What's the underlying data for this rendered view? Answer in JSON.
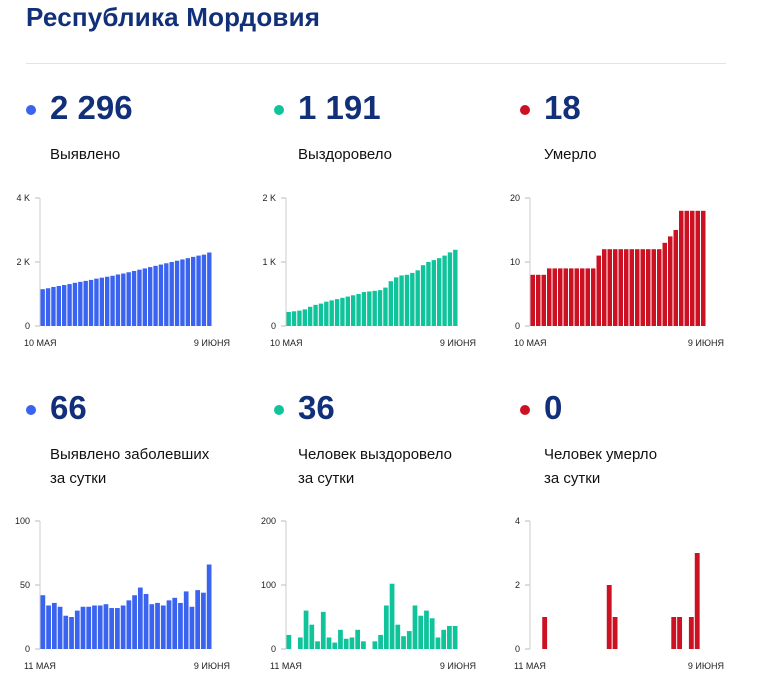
{
  "title": "Республика Мордовия",
  "colors": {
    "blue": "#3a63f0",
    "teal": "#0fc39a",
    "red": "#cc1123",
    "title": "#12307a"
  },
  "stats": [
    {
      "value": "2 296",
      "label1": "Выявлено",
      "label2": ""
    },
    {
      "value": "1 191",
      "label1": "Выздоровело",
      "label2": ""
    },
    {
      "value": "18",
      "label1": "Умерло",
      "label2": ""
    },
    {
      "value": "66",
      "label1": "Выявлено заболевших",
      "label2": "за сутки"
    },
    {
      "value": "36",
      "label1": "Человек выздоровело",
      "label2": "за сутки"
    },
    {
      "value": "0",
      "label1": "Человек умерло",
      "label2": "за сутки"
    }
  ],
  "chart_data": [
    {
      "type": "bar",
      "color": "blue",
      "ylim": [
        0,
        4000
      ],
      "yticks": [
        {
          "v": 0,
          "t": "0"
        },
        {
          "v": 2000,
          "t": "2 K"
        },
        {
          "v": 4000,
          "t": "4 K"
        }
      ],
      "x_start": "10 МАЯ",
      "x_end": "9 ИЮНЯ",
      "values": [
        1150,
        1180,
        1220,
        1250,
        1280,
        1310,
        1350,
        1380,
        1410,
        1440,
        1480,
        1510,
        1540,
        1570,
        1610,
        1640,
        1680,
        1720,
        1760,
        1800,
        1840,
        1880,
        1920,
        1960,
        2000,
        2040,
        2080,
        2120,
        2160,
        2200,
        2230,
        2296
      ]
    },
    {
      "type": "bar",
      "color": "teal",
      "ylim": [
        0,
        2000
      ],
      "yticks": [
        {
          "v": 0,
          "t": "0"
        },
        {
          "v": 1000,
          "t": "1 K"
        },
        {
          "v": 2000,
          "t": "2 K"
        }
      ],
      "x_start": "10 МАЯ",
      "x_end": "9 ИЮНЯ",
      "values": [
        220,
        230,
        240,
        260,
        300,
        330,
        350,
        380,
        400,
        420,
        440,
        460,
        480,
        500,
        530,
        540,
        550,
        560,
        600,
        700,
        760,
        790,
        800,
        830,
        870,
        950,
        1000,
        1030,
        1060,
        1100,
        1150,
        1191
      ]
    },
    {
      "type": "bar",
      "color": "red",
      "ylim": [
        0,
        20
      ],
      "yticks": [
        {
          "v": 0,
          "t": "0"
        },
        {
          "v": 10,
          "t": "10"
        },
        {
          "v": 20,
          "t": "20"
        }
      ],
      "x_start": "10 МАЯ",
      "x_end": "9 ИЮНЯ",
      "values": [
        8,
        8,
        8,
        9,
        9,
        9,
        9,
        9,
        9,
        9,
        9,
        9,
        11,
        12,
        12,
        12,
        12,
        12,
        12,
        12,
        12,
        12,
        12,
        12,
        13,
        14,
        15,
        18,
        18,
        18,
        18,
        18
      ]
    },
    {
      "type": "bar",
      "color": "blue",
      "ylim": [
        0,
        100
      ],
      "yticks": [
        {
          "v": 0,
          "t": "0"
        },
        {
          "v": 50,
          "t": "50"
        },
        {
          "v": 100,
          "t": "100"
        }
      ],
      "x_start": "11 МАЯ",
      "x_end": "9 ИЮНЯ",
      "values": [
        42,
        34,
        36,
        33,
        26,
        25,
        30,
        33,
        33,
        34,
        34,
        35,
        32,
        32,
        34,
        38,
        42,
        48,
        43,
        35,
        36,
        34,
        38,
        40,
        36,
        45,
        33,
        46,
        44,
        66
      ]
    },
    {
      "type": "bar",
      "color": "teal",
      "ylim": [
        0,
        200
      ],
      "yticks": [
        {
          "v": 0,
          "t": "0"
        },
        {
          "v": 100,
          "t": "100"
        },
        {
          "v": 200,
          "t": "200"
        }
      ],
      "x_start": "11 МАЯ",
      "x_end": "9 ИЮНЯ",
      "values": [
        22,
        0,
        18,
        60,
        38,
        12,
        58,
        18,
        10,
        30,
        16,
        18,
        30,
        12,
        0,
        12,
        22,
        68,
        102,
        38,
        20,
        28,
        68,
        52,
        60,
        48,
        18,
        30,
        36,
        36
      ]
    },
    {
      "type": "bar",
      "color": "red",
      "ylim": [
        0,
        4
      ],
      "yticks": [
        {
          "v": 0,
          "t": "0"
        },
        {
          "v": 2,
          "t": "2"
        },
        {
          "v": 4,
          "t": "4"
        }
      ],
      "x_start": "11 МАЯ",
      "x_end": "9 ИЮНЯ",
      "values": [
        0,
        0,
        1,
        0,
        0,
        0,
        0,
        0,
        0,
        0,
        0,
        0,
        0,
        2,
        1,
        0,
        0,
        0,
        0,
        0,
        0,
        0,
        0,
        0,
        1,
        1,
        0,
        1,
        3,
        0
      ]
    }
  ]
}
